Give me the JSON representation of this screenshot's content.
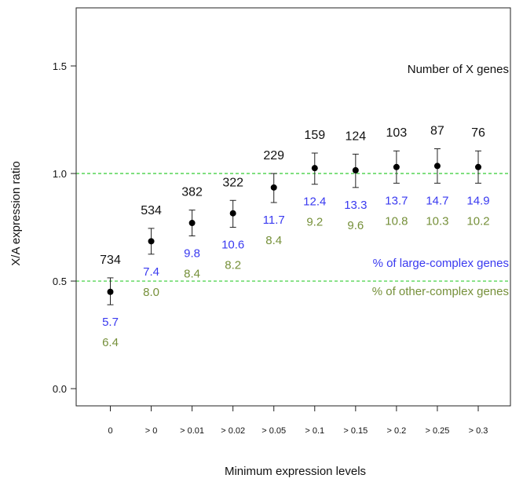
{
  "chart_data": {
    "type": "scatter",
    "title": "",
    "xlabel": "Minimum expression levels",
    "ylabel": "X/A expression ratio",
    "ylim": [
      -0.08,
      1.77
    ],
    "yticks": [
      "0.0",
      "0.5",
      "1.0",
      "1.5"
    ],
    "ytick_values": [
      0.0,
      0.5,
      1.0,
      1.5
    ],
    "reference_lines": [
      0.5,
      1.0
    ],
    "reference_line_color": "#33cc33",
    "categories": [
      "0",
      "> 0",
      "> 0.01",
      "> 0.02",
      "> 0.05",
      "> 0.1",
      "> 0.15",
      "> 0.2",
      "> 0.25",
      "> 0.3"
    ],
    "values": [
      0.45,
      0.685,
      0.77,
      0.815,
      0.935,
      1.025,
      1.015,
      1.03,
      1.035,
      1.03
    ],
    "error_low": [
      0.39,
      0.625,
      0.71,
      0.75,
      0.865,
      0.95,
      0.935,
      0.955,
      0.955,
      0.955
    ],
    "error_high": [
      0.515,
      0.745,
      0.83,
      0.875,
      1.0,
      1.095,
      1.09,
      1.105,
      1.115,
      1.105
    ],
    "x_gene_counts": [
      "734",
      "534",
      "382",
      "322",
      "229",
      "159",
      "124",
      "103",
      "87",
      "76"
    ],
    "large_complex_pct": [
      "5.7",
      "7.4",
      "9.8",
      "10.6",
      "11.7",
      "12.4",
      "13.3",
      "13.7",
      "14.7",
      "14.9"
    ],
    "other_complex_pct": [
      "6.4",
      "8.0",
      "8.4",
      "8.2",
      "8.4",
      "9.2",
      "9.6",
      "10.8",
      "10.3",
      "10.2"
    ],
    "annotations": {
      "count_label": "Number of X genes",
      "large_label": "% of large-complex genes",
      "other_label": "% of other-complex genes"
    },
    "colors": {
      "blue": "#3a3af0",
      "green": "#76903a",
      "point": "#000000"
    },
    "grid": false
  }
}
